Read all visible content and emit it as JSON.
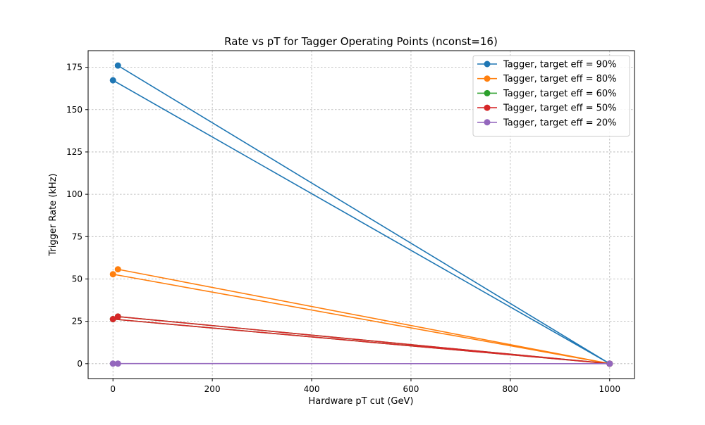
{
  "chart_data": {
    "type": "line",
    "title": "Rate vs pT for Tagger Operating Points (nconst=16)",
    "xlabel": "Hardware pT cut (GeV)",
    "ylabel": "Trigger Rate (kHz)",
    "xlim": [
      -50,
      1050
    ],
    "ylim": [
      -8.8,
      184.8
    ],
    "xticks": [
      0,
      200,
      400,
      600,
      800,
      1000
    ],
    "yticks": [
      0,
      25,
      50,
      75,
      100,
      125,
      150,
      175
    ],
    "grid": true,
    "legend_position": "top-right",
    "series": [
      {
        "name": "Tagger, target eff = 90%",
        "color": "#1f77b4",
        "x": [
          10,
          1000,
          0,
          1000
        ],
        "y": [
          176.0,
          0,
          167.3,
          0
        ]
      },
      {
        "name": "Tagger, target eff = 80%",
        "color": "#ff7f0e",
        "x": [
          10,
          1000,
          0,
          1000
        ],
        "y": [
          55.7,
          0,
          52.8,
          0
        ]
      },
      {
        "name": "Tagger, target eff = 60%",
        "color": "#2ca02c",
        "x": [
          10,
          1000,
          0,
          1000
        ],
        "y": [
          27.8,
          0,
          26.3,
          0
        ]
      },
      {
        "name": "Tagger, target eff = 50%",
        "color": "#d62728",
        "x": [
          10,
          1000,
          0,
          1000
        ],
        "y": [
          27.8,
          0,
          26.3,
          0
        ]
      },
      {
        "name": "Tagger, target eff = 20%",
        "color": "#9467bd",
        "x": [
          10,
          1000,
          0,
          1000
        ],
        "y": [
          0.05,
          0,
          0.05,
          0
        ]
      }
    ]
  }
}
